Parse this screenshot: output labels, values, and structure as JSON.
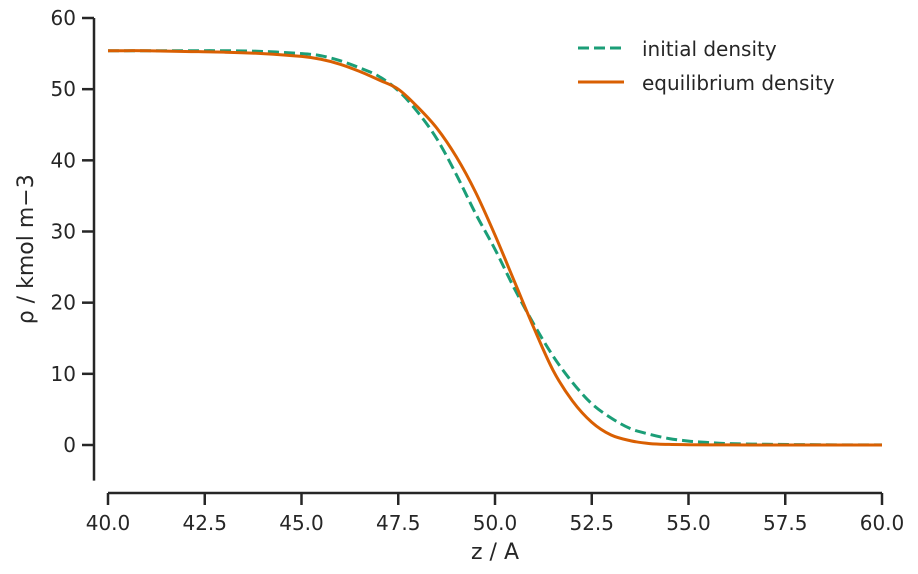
{
  "chart_data": {
    "type": "line",
    "title": "",
    "xlabel": "z / A",
    "ylabel": "ρ / kmol m−3",
    "xlim": [
      40.0,
      60.0
    ],
    "ylim": [
      -5,
      60
    ],
    "x_axis_start": 40.0,
    "y_axis_start": -5,
    "x_ticks": [
      40.0,
      42.5,
      45.0,
      47.5,
      50.0,
      52.5,
      55.0,
      57.5,
      60.0
    ],
    "x_tick_labels": [
      "40.0",
      "42.5",
      "45.0",
      "47.5",
      "50.0",
      "52.5",
      "55.0",
      "57.5",
      "60.0"
    ],
    "y_ticks": [
      0,
      10,
      20,
      30,
      40,
      50,
      60
    ],
    "y_tick_labels": [
      "0",
      "10",
      "20",
      "30",
      "40",
      "50",
      "60"
    ],
    "grid": false,
    "legend_position": "top-right",
    "series": [
      {
        "name": "initial density",
        "color": "#1b9e77",
        "style": "dashed",
        "x": [
          40,
          41,
          42,
          43,
          44,
          45,
          45.5,
          46,
          46.5,
          47,
          47.5,
          48,
          48.5,
          49,
          49.5,
          50,
          50.5,
          51,
          51.5,
          52,
          52.5,
          53,
          53.5,
          54,
          54.5,
          55,
          55.5,
          56,
          57,
          58,
          59,
          60
        ],
        "y": [
          55.4,
          55.4,
          55.4,
          55.4,
          55.3,
          55.0,
          54.7,
          54.0,
          53.0,
          51.8,
          49.8,
          46.8,
          43.0,
          38.0,
          32.5,
          27.5,
          22.0,
          17.0,
          12.5,
          8.8,
          5.8,
          3.8,
          2.3,
          1.5,
          0.9,
          0.55,
          0.35,
          0.2,
          0.1,
          0.05,
          0.02,
          0.01
        ]
      },
      {
        "name": "equilibrium density",
        "color": "#d95f02",
        "style": "solid",
        "x": [
          40,
          41,
          42,
          43,
          44,
          45,
          45.5,
          46,
          46.5,
          47,
          47.5,
          48,
          48.5,
          49,
          49.5,
          50,
          50.5,
          51,
          51.5,
          52,
          52.5,
          53,
          53.5,
          54,
          54.5,
          55,
          55.5,
          56,
          57,
          58,
          59,
          60
        ],
        "y": [
          55.4,
          55.4,
          55.3,
          55.2,
          55.0,
          54.6,
          54.2,
          53.5,
          52.5,
          51.3,
          50.0,
          47.5,
          44.5,
          40.5,
          35.5,
          29.5,
          23.0,
          16.5,
          10.5,
          6.2,
          3.2,
          1.4,
          0.6,
          0.2,
          0.08,
          0.04,
          0.02,
          0.01,
          0.0,
          0.0,
          0.0,
          0.0
        ]
      }
    ]
  }
}
